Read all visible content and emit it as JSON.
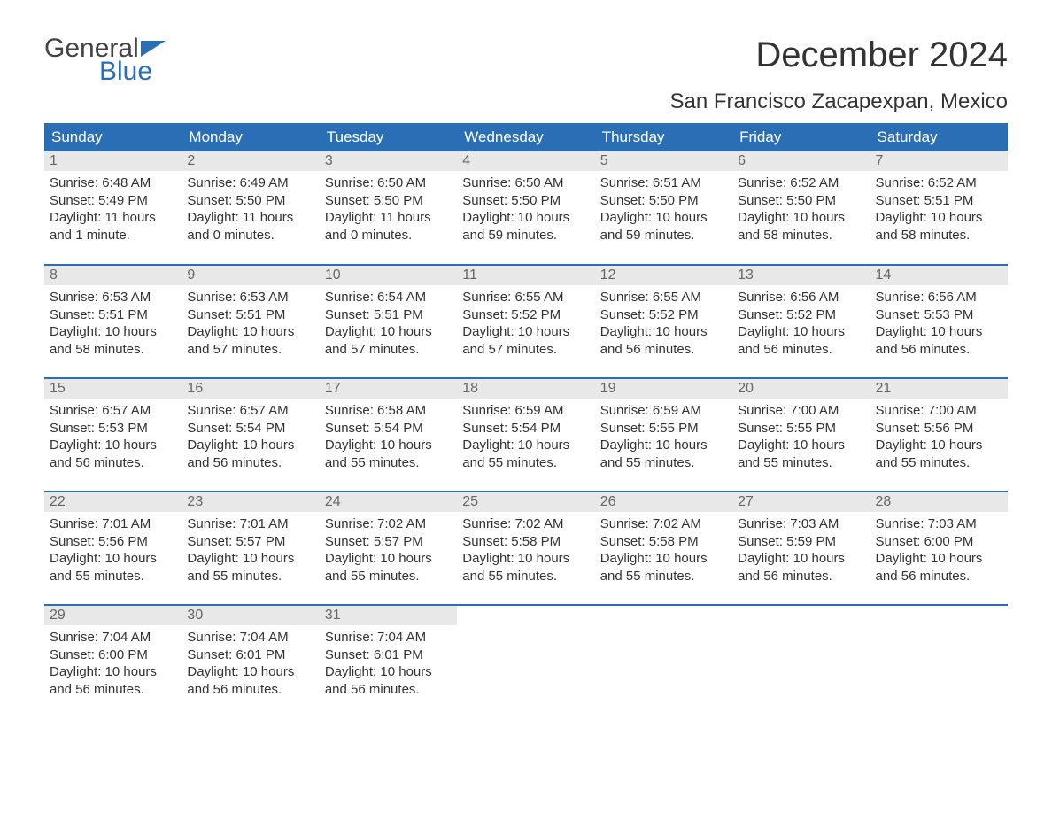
{
  "logo": {
    "part1": "General",
    "part2": "Blue"
  },
  "title": "December 2024",
  "location": "San Francisco Zacapexpan, Mexico",
  "colors": {
    "header_bg": "#2a6eb6",
    "header_text": "#ffffff",
    "daynum_bg": "#e8e8e8",
    "daynum_text": "#666666",
    "body_text": "#333333",
    "logo_gray": "#444444",
    "logo_blue": "#2a6eb6",
    "page_bg": "#ffffff"
  },
  "layout": {
    "columns": 7,
    "rows": 5,
    "title_fontsize": 40,
    "location_fontsize": 24,
    "header_fontsize": 17,
    "body_fontsize": 15
  },
  "day_labels": [
    "Sunday",
    "Monday",
    "Tuesday",
    "Wednesday",
    "Thursday",
    "Friday",
    "Saturday"
  ],
  "days": [
    {
      "n": "1",
      "sunrise": "Sunrise: 6:48 AM",
      "sunset": "Sunset: 5:49 PM",
      "daylight1": "Daylight: 11 hours",
      "daylight2": "and 1 minute."
    },
    {
      "n": "2",
      "sunrise": "Sunrise: 6:49 AM",
      "sunset": "Sunset: 5:50 PM",
      "daylight1": "Daylight: 11 hours",
      "daylight2": "and 0 minutes."
    },
    {
      "n": "3",
      "sunrise": "Sunrise: 6:50 AM",
      "sunset": "Sunset: 5:50 PM",
      "daylight1": "Daylight: 11 hours",
      "daylight2": "and 0 minutes."
    },
    {
      "n": "4",
      "sunrise": "Sunrise: 6:50 AM",
      "sunset": "Sunset: 5:50 PM",
      "daylight1": "Daylight: 10 hours",
      "daylight2": "and 59 minutes."
    },
    {
      "n": "5",
      "sunrise": "Sunrise: 6:51 AM",
      "sunset": "Sunset: 5:50 PM",
      "daylight1": "Daylight: 10 hours",
      "daylight2": "and 59 minutes."
    },
    {
      "n": "6",
      "sunrise": "Sunrise: 6:52 AM",
      "sunset": "Sunset: 5:50 PM",
      "daylight1": "Daylight: 10 hours",
      "daylight2": "and 58 minutes."
    },
    {
      "n": "7",
      "sunrise": "Sunrise: 6:52 AM",
      "sunset": "Sunset: 5:51 PM",
      "daylight1": "Daylight: 10 hours",
      "daylight2": "and 58 minutes."
    },
    {
      "n": "8",
      "sunrise": "Sunrise: 6:53 AM",
      "sunset": "Sunset: 5:51 PM",
      "daylight1": "Daylight: 10 hours",
      "daylight2": "and 58 minutes."
    },
    {
      "n": "9",
      "sunrise": "Sunrise: 6:53 AM",
      "sunset": "Sunset: 5:51 PM",
      "daylight1": "Daylight: 10 hours",
      "daylight2": "and 57 minutes."
    },
    {
      "n": "10",
      "sunrise": "Sunrise: 6:54 AM",
      "sunset": "Sunset: 5:51 PM",
      "daylight1": "Daylight: 10 hours",
      "daylight2": "and 57 minutes."
    },
    {
      "n": "11",
      "sunrise": "Sunrise: 6:55 AM",
      "sunset": "Sunset: 5:52 PM",
      "daylight1": "Daylight: 10 hours",
      "daylight2": "and 57 minutes."
    },
    {
      "n": "12",
      "sunrise": "Sunrise: 6:55 AM",
      "sunset": "Sunset: 5:52 PM",
      "daylight1": "Daylight: 10 hours",
      "daylight2": "and 56 minutes."
    },
    {
      "n": "13",
      "sunrise": "Sunrise: 6:56 AM",
      "sunset": "Sunset: 5:52 PM",
      "daylight1": "Daylight: 10 hours",
      "daylight2": "and 56 minutes."
    },
    {
      "n": "14",
      "sunrise": "Sunrise: 6:56 AM",
      "sunset": "Sunset: 5:53 PM",
      "daylight1": "Daylight: 10 hours",
      "daylight2": "and 56 minutes."
    },
    {
      "n": "15",
      "sunrise": "Sunrise: 6:57 AM",
      "sunset": "Sunset: 5:53 PM",
      "daylight1": "Daylight: 10 hours",
      "daylight2": "and 56 minutes."
    },
    {
      "n": "16",
      "sunrise": "Sunrise: 6:57 AM",
      "sunset": "Sunset: 5:54 PM",
      "daylight1": "Daylight: 10 hours",
      "daylight2": "and 56 minutes."
    },
    {
      "n": "17",
      "sunrise": "Sunrise: 6:58 AM",
      "sunset": "Sunset: 5:54 PM",
      "daylight1": "Daylight: 10 hours",
      "daylight2": "and 55 minutes."
    },
    {
      "n": "18",
      "sunrise": "Sunrise: 6:59 AM",
      "sunset": "Sunset: 5:54 PM",
      "daylight1": "Daylight: 10 hours",
      "daylight2": "and 55 minutes."
    },
    {
      "n": "19",
      "sunrise": "Sunrise: 6:59 AM",
      "sunset": "Sunset: 5:55 PM",
      "daylight1": "Daylight: 10 hours",
      "daylight2": "and 55 minutes."
    },
    {
      "n": "20",
      "sunrise": "Sunrise: 7:00 AM",
      "sunset": "Sunset: 5:55 PM",
      "daylight1": "Daylight: 10 hours",
      "daylight2": "and 55 minutes."
    },
    {
      "n": "21",
      "sunrise": "Sunrise: 7:00 AM",
      "sunset": "Sunset: 5:56 PM",
      "daylight1": "Daylight: 10 hours",
      "daylight2": "and 55 minutes."
    },
    {
      "n": "22",
      "sunrise": "Sunrise: 7:01 AM",
      "sunset": "Sunset: 5:56 PM",
      "daylight1": "Daylight: 10 hours",
      "daylight2": "and 55 minutes."
    },
    {
      "n": "23",
      "sunrise": "Sunrise: 7:01 AM",
      "sunset": "Sunset: 5:57 PM",
      "daylight1": "Daylight: 10 hours",
      "daylight2": "and 55 minutes."
    },
    {
      "n": "24",
      "sunrise": "Sunrise: 7:02 AM",
      "sunset": "Sunset: 5:57 PM",
      "daylight1": "Daylight: 10 hours",
      "daylight2": "and 55 minutes."
    },
    {
      "n": "25",
      "sunrise": "Sunrise: 7:02 AM",
      "sunset": "Sunset: 5:58 PM",
      "daylight1": "Daylight: 10 hours",
      "daylight2": "and 55 minutes."
    },
    {
      "n": "26",
      "sunrise": "Sunrise: 7:02 AM",
      "sunset": "Sunset: 5:58 PM",
      "daylight1": "Daylight: 10 hours",
      "daylight2": "and 55 minutes."
    },
    {
      "n": "27",
      "sunrise": "Sunrise: 7:03 AM",
      "sunset": "Sunset: 5:59 PM",
      "daylight1": "Daylight: 10 hours",
      "daylight2": "and 56 minutes."
    },
    {
      "n": "28",
      "sunrise": "Sunrise: 7:03 AM",
      "sunset": "Sunset: 6:00 PM",
      "daylight1": "Daylight: 10 hours",
      "daylight2": "and 56 minutes."
    },
    {
      "n": "29",
      "sunrise": "Sunrise: 7:04 AM",
      "sunset": "Sunset: 6:00 PM",
      "daylight1": "Daylight: 10 hours",
      "daylight2": "and 56 minutes."
    },
    {
      "n": "30",
      "sunrise": "Sunrise: 7:04 AM",
      "sunset": "Sunset: 6:01 PM",
      "daylight1": "Daylight: 10 hours",
      "daylight2": "and 56 minutes."
    },
    {
      "n": "31",
      "sunrise": "Sunrise: 7:04 AM",
      "sunset": "Sunset: 6:01 PM",
      "daylight1": "Daylight: 10 hours",
      "daylight2": "and 56 minutes."
    }
  ]
}
